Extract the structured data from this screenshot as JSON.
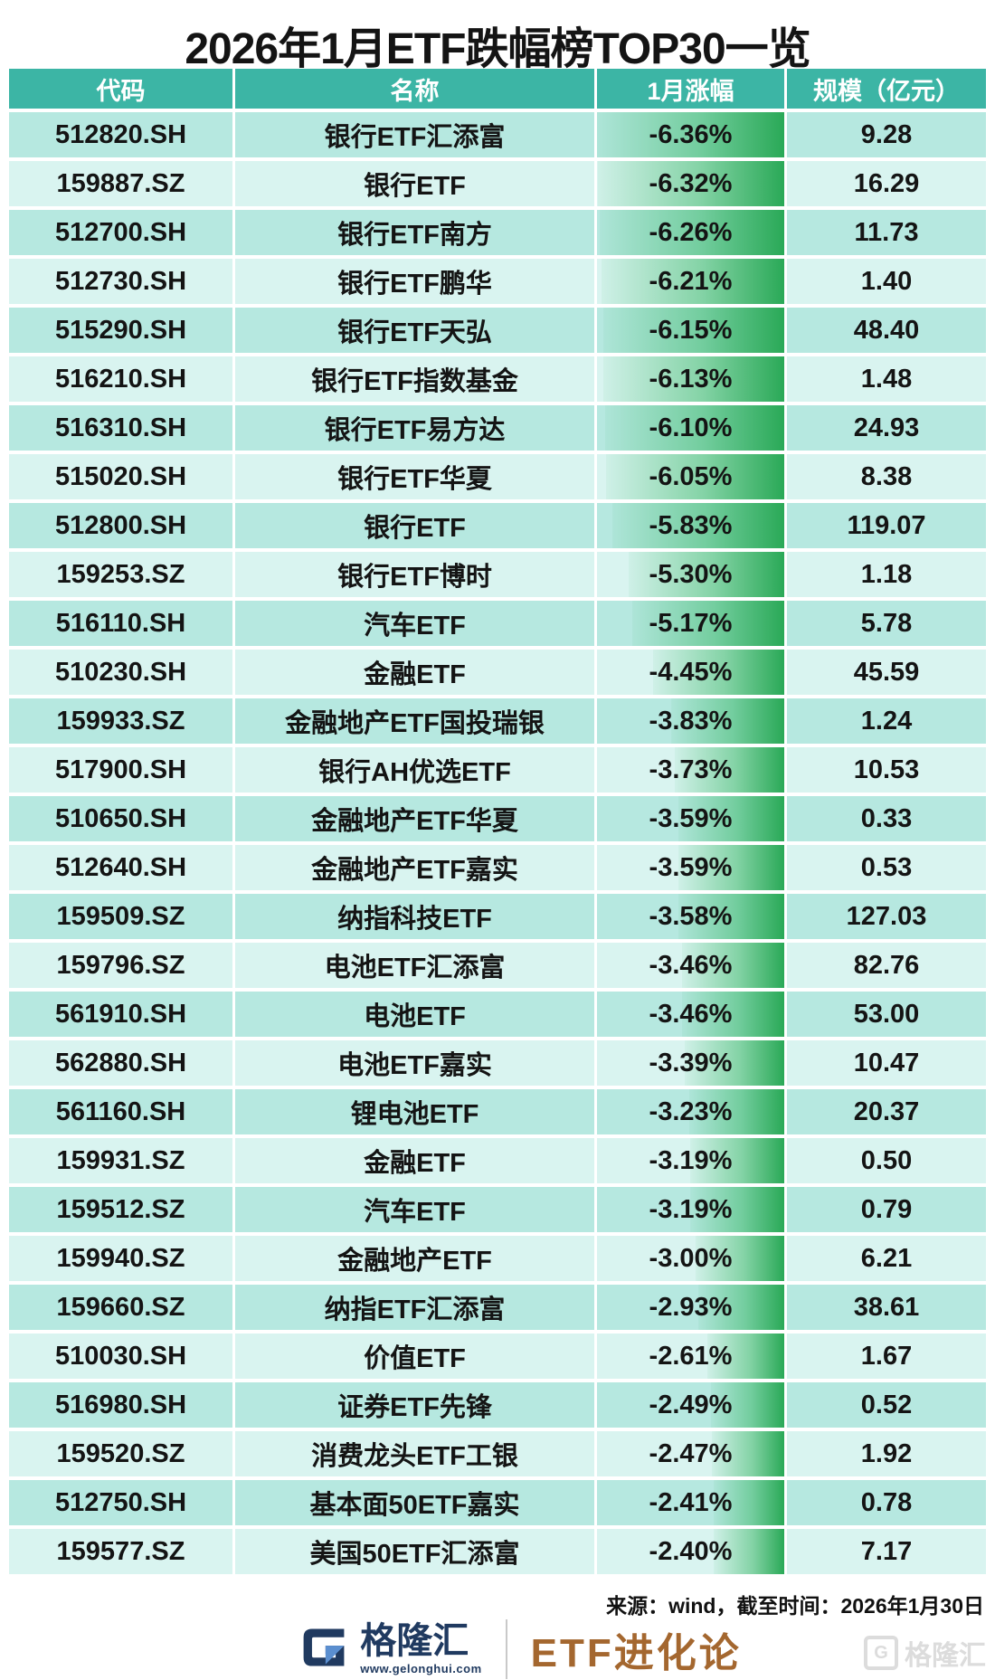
{
  "title": "2026年1月ETF跌幅榜TOP30一览",
  "chart_data": {
    "type": "table",
    "title": "2026年1月ETF跌幅榜TOP30一览",
    "columns": [
      "代码",
      "名称",
      "1月涨幅",
      "规模（亿元）"
    ],
    "bar_column": "1月涨幅",
    "max_abs_change": 6.36,
    "rows": [
      {
        "code": "512820.SH",
        "name": "银行ETF汇添富",
        "change": "-6.36%",
        "scale": "9.28"
      },
      {
        "code": "159887.SZ",
        "name": "银行ETF",
        "change": "-6.32%",
        "scale": "16.29"
      },
      {
        "code": "512700.SH",
        "name": "银行ETF南方",
        "change": "-6.26%",
        "scale": "11.73"
      },
      {
        "code": "512730.SH",
        "name": "银行ETF鹏华",
        "change": "-6.21%",
        "scale": "1.40"
      },
      {
        "code": "515290.SH",
        "name": "银行ETF天弘",
        "change": "-6.15%",
        "scale": "48.40"
      },
      {
        "code": "516210.SH",
        "name": "银行ETF指数基金",
        "change": "-6.13%",
        "scale": "1.48"
      },
      {
        "code": "516310.SH",
        "name": "银行ETF易方达",
        "change": "-6.10%",
        "scale": "24.93"
      },
      {
        "code": "515020.SH",
        "name": "银行ETF华夏",
        "change": "-6.05%",
        "scale": "8.38"
      },
      {
        "code": "512800.SH",
        "name": "银行ETF",
        "change": "-5.83%",
        "scale": "119.07"
      },
      {
        "code": "159253.SZ",
        "name": "银行ETF博时",
        "change": "-5.30%",
        "scale": "1.18"
      },
      {
        "code": "516110.SH",
        "name": "汽车ETF",
        "change": "-5.17%",
        "scale": "5.78"
      },
      {
        "code": "510230.SH",
        "name": "金融ETF",
        "change": "-4.45%",
        "scale": "45.59"
      },
      {
        "code": "159933.SZ",
        "name": "金融地产ETF国投瑞银",
        "change": "-3.83%",
        "scale": "1.24"
      },
      {
        "code": "517900.SH",
        "name": "银行AH优选ETF",
        "change": "-3.73%",
        "scale": "10.53"
      },
      {
        "code": "510650.SH",
        "name": "金融地产ETF华夏",
        "change": "-3.59%",
        "scale": "0.33"
      },
      {
        "code": "512640.SH",
        "name": "金融地产ETF嘉实",
        "change": "-3.59%",
        "scale": "0.53"
      },
      {
        "code": "159509.SZ",
        "name": "纳指科技ETF",
        "change": "-3.58%",
        "scale": "127.03"
      },
      {
        "code": "159796.SZ",
        "name": "电池ETF汇添富",
        "change": "-3.46%",
        "scale": "82.76"
      },
      {
        "code": "561910.SH",
        "name": "电池ETF",
        "change": "-3.46%",
        "scale": "53.00"
      },
      {
        "code": "562880.SH",
        "name": "电池ETF嘉实",
        "change": "-3.39%",
        "scale": "10.47"
      },
      {
        "code": "561160.SH",
        "name": "锂电池ETF",
        "change": "-3.23%",
        "scale": "20.37"
      },
      {
        "code": "159931.SZ",
        "name": "金融ETF",
        "change": "-3.19%",
        "scale": "0.50"
      },
      {
        "code": "159512.SZ",
        "name": "汽车ETF",
        "change": "-3.19%",
        "scale": "0.79"
      },
      {
        "code": "159940.SZ",
        "name": "金融地产ETF",
        "change": "-3.00%",
        "scale": "6.21"
      },
      {
        "code": "159660.SZ",
        "name": "纳指ETF汇添富",
        "change": "-2.93%",
        "scale": "38.61"
      },
      {
        "code": "510030.SH",
        "name": "价值ETF",
        "change": "-2.61%",
        "scale": "1.67"
      },
      {
        "code": "516980.SH",
        "name": "证券ETF先锋",
        "change": "-2.49%",
        "scale": "0.52"
      },
      {
        "code": "159520.SZ",
        "name": "消费龙头ETF工银",
        "change": "-2.47%",
        "scale": "1.92"
      },
      {
        "code": "512750.SH",
        "name": "基本面50ETF嘉实",
        "change": "-2.41%",
        "scale": "0.78"
      },
      {
        "code": "159577.SZ",
        "name": "美国50ETF汇添富",
        "change": "-2.40%",
        "scale": "7.17"
      }
    ]
  },
  "footer": {
    "source_note": "来源：wind，截至时间：2026年1月30日",
    "brand_name": "格隆汇",
    "brand_url": "www.gelonghui.com",
    "channel_name": "ETF进化论",
    "watermark": "格隆汇",
    "watermark_glyph": "G"
  },
  "colors": {
    "header_bg": "#3cb5a5",
    "row_odd": "#b6e8e0",
    "row_even": "#d9f4f0",
    "bar_green": "#2aa957",
    "title_text": "#141414",
    "brand_navy": "#203a60",
    "brand_light_blue": "#5b8fd0",
    "channel_brown": "#a4672f",
    "watermark_gray": "#dcdcdc"
  }
}
